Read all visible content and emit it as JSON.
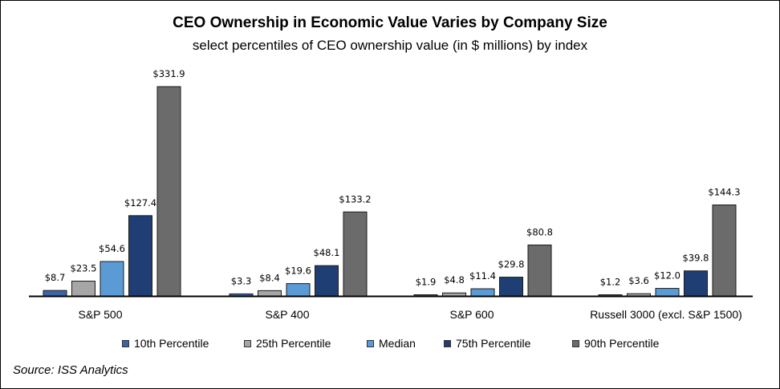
{
  "chart_data": {
    "type": "bar",
    "title": "CEO Ownership in Economic Value Varies by Company Size",
    "subtitle": "select percentiles of CEO ownership value (in $ millions) by index",
    "categories": [
      "S&P 500",
      "S&P 400",
      "S&P 600",
      "Russell 3000 (excl. S&P 1500)"
    ],
    "series": [
      {
        "name": "10th Percentile",
        "color": "#3B64A8",
        "values": [
          8.7,
          3.3,
          1.9,
          1.2
        ],
        "labels": [
          "$8.7",
          "$3.3",
          "$1.9",
          "$1.2"
        ]
      },
      {
        "name": "25th Percentile",
        "color": "#A6A6A6",
        "values": [
          23.5,
          8.4,
          4.8,
          3.6
        ],
        "labels": [
          "$23.5",
          "$8.4",
          "$4.8",
          "$3.6"
        ]
      },
      {
        "name": "Median",
        "color": "#5B9BD5",
        "values": [
          54.6,
          19.6,
          11.4,
          12.0
        ],
        "labels": [
          "$54.6",
          "$19.6",
          "$11.4",
          "$12.0"
        ]
      },
      {
        "name": "75th Percentile",
        "color": "#1F3F74",
        "values": [
          127.4,
          48.1,
          29.8,
          39.8
        ],
        "labels": [
          "$127.4",
          "$48.1",
          "$29.8",
          "$39.8"
        ]
      },
      {
        "name": "90th Percentile",
        "color": "#6B6B6B",
        "values": [
          331.9,
          133.2,
          80.8,
          144.3
        ],
        "labels": [
          "$331.9",
          "$133.2",
          "$80.8",
          "$144.3"
        ]
      }
    ],
    "ylim": [
      0,
      331.9
    ],
    "grid": false,
    "legend_position": "bottom"
  },
  "source": "Source: ISS Analytics"
}
